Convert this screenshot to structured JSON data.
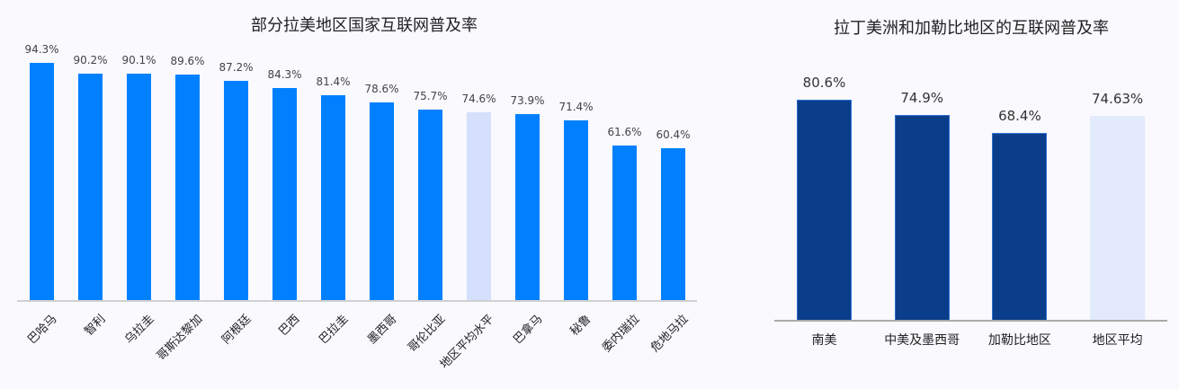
{
  "chart_data": [
    {
      "type": "bar",
      "title": "部分拉美地区国家互联网普及率",
      "categories": [
        "巴哈马",
        "智利",
        "乌拉圭",
        "哥斯达黎加",
        "阿根廷",
        "巴西",
        "巴拉圭",
        "墨西哥",
        "哥伦比亚",
        "地区平均水平",
        "巴拿马",
        "秘鲁",
        "委内瑞拉",
        "危地马拉"
      ],
      "values": [
        94.3,
        90.2,
        90.1,
        89.6,
        87.2,
        84.3,
        81.4,
        78.6,
        75.7,
        74.6,
        73.9,
        71.4,
        61.6,
        60.4
      ],
      "labels": [
        "94.3%",
        "90.2%",
        "90.1%",
        "89.6%",
        "87.2%",
        "84.3%",
        "81.4%",
        "78.6%",
        "75.7%",
        "74.6%",
        "73.9%",
        "71.4%",
        "61.6%",
        "60.4%"
      ],
      "highlight_index": 9,
      "colors": {
        "bar": "#0080ff",
        "highlight": "#d4e0fc",
        "axis": "#d0d0d0"
      },
      "xlabel": "",
      "ylabel": "",
      "ylim": [
        0,
        100
      ],
      "grid": false,
      "legend": null
    },
    {
      "type": "bar",
      "title": "拉丁美洲和加勒比地区的互联网普及率",
      "categories": [
        "南美",
        "中美及墨西哥",
        "加勒比地区",
        "地区平均"
      ],
      "values": [
        80.6,
        74.9,
        68.4,
        74.63
      ],
      "labels": [
        "80.6%",
        "74.9%",
        "68.4%",
        "74.63%"
      ],
      "highlight_index": 3,
      "colors": {
        "bar": "#0a3d8a",
        "bar_border": "#2d6fd0",
        "highlight": "#e2eafc",
        "axis": "#aaaaaa"
      },
      "xlabel": "",
      "ylabel": "",
      "ylim": [
        0,
        100
      ],
      "grid": false,
      "legend": null
    }
  ]
}
